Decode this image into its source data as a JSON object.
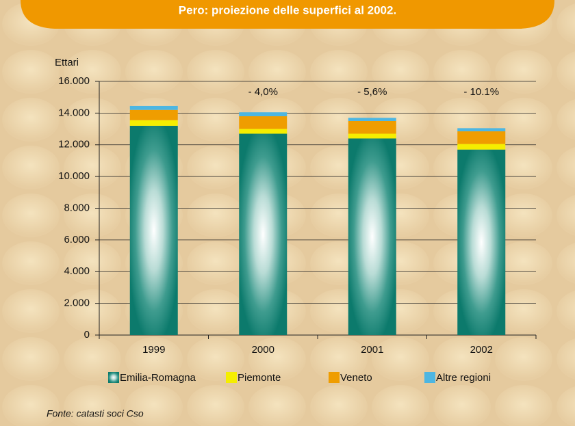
{
  "chart_data": {
    "type": "stacked-bar",
    "title": "Pero: proiezione delle superfici al 2002.",
    "y_label": "Ettari",
    "source": "Fonte: catasti soci Cso",
    "categories": [
      "1999",
      "2000",
      "2001",
      "2002"
    ],
    "series": [
      {
        "name": "Emilia-Romagna",
        "color": "#0c7a6c",
        "values": [
          13200,
          12700,
          12400,
          11700
        ]
      },
      {
        "name": "Piemonte",
        "color": "#f5ee00",
        "values": [
          350,
          300,
          300,
          350
        ]
      },
      {
        "name": "Veneto",
        "color": "#ef9d00",
        "values": [
          650,
          800,
          800,
          800
        ]
      },
      {
        "name": "Altre regioni",
        "color": "#4db6e2",
        "values": [
          250,
          250,
          200,
          200
        ]
      }
    ],
    "annotations": [
      null,
      "- 4,0%",
      "- 5,6%",
      "- 10.1%"
    ],
    "ylim": [
      0,
      16000
    ],
    "yticks": [
      0,
      {
        "value": 2000,
        "label": "2.000"
      },
      {
        "value": 4000,
        "label": "4.000"
      },
      {
        "value": 6000,
        "label": "6.000"
      },
      {
        "value": 8000,
        "label": "8.000"
      },
      {
        "value": 10000,
        "label": "10.000"
      },
      {
        "value": 12000,
        "label": "12.000"
      },
      {
        "value": 14000,
        "label": "14.000"
      },
      {
        "value": 16000,
        "label": "16.000"
      }
    ],
    "grid": true
  }
}
